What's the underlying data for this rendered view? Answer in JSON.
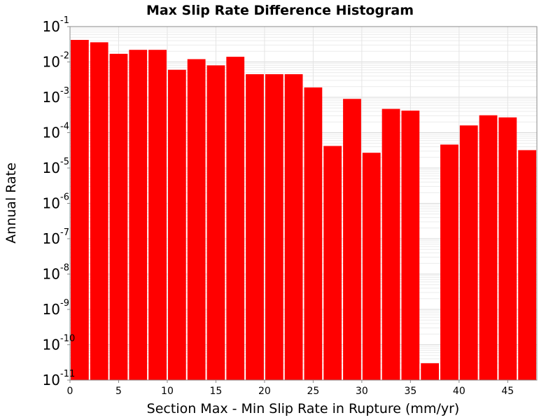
{
  "chart_data": {
    "type": "bar",
    "title": "Max Slip Rate Difference Histogram",
    "xlabel": "Section Max - Min Slip Rate in Rupture (mm/yr)",
    "ylabel": "Annual Rate",
    "xlim": [
      0,
      48
    ],
    "ylim": [
      1e-11,
      0.1
    ],
    "y_scale": "log",
    "grid": true,
    "bar_width": 2,
    "bar_color": "#ff0000",
    "x_ticks": [
      0,
      5,
      10,
      15,
      20,
      25,
      30,
      35,
      40,
      45
    ],
    "y_ticks": [
      {
        "base": "10",
        "exp": "-1"
      },
      {
        "base": "10",
        "exp": "-2"
      },
      {
        "base": "10",
        "exp": "-3"
      },
      {
        "base": "10",
        "exp": "-4"
      },
      {
        "base": "10",
        "exp": "-5"
      },
      {
        "base": "10",
        "exp": "-6"
      },
      {
        "base": "10",
        "exp": "-7"
      },
      {
        "base": "10",
        "exp": "-8"
      },
      {
        "base": "10",
        "exp": "-9"
      },
      {
        "base": "10",
        "exp": "-10"
      },
      {
        "base": "10",
        "exp": "-11"
      }
    ],
    "x": [
      1,
      3,
      5,
      7,
      9,
      11,
      13,
      15,
      17,
      19,
      21,
      23,
      25,
      27,
      29,
      31,
      33,
      35,
      37,
      39,
      41,
      43,
      45,
      47
    ],
    "values": [
      0.042,
      0.036,
      0.017,
      0.022,
      0.022,
      0.006,
      0.012,
      0.008,
      0.014,
      0.0045,
      0.0045,
      0.0045,
      0.0019,
      4.2e-05,
      0.0009,
      2.7e-05,
      0.00047,
      0.00042,
      3e-11,
      4.6e-05,
      0.00016,
      0.00031,
      0.00027,
      3.2e-05
    ]
  }
}
